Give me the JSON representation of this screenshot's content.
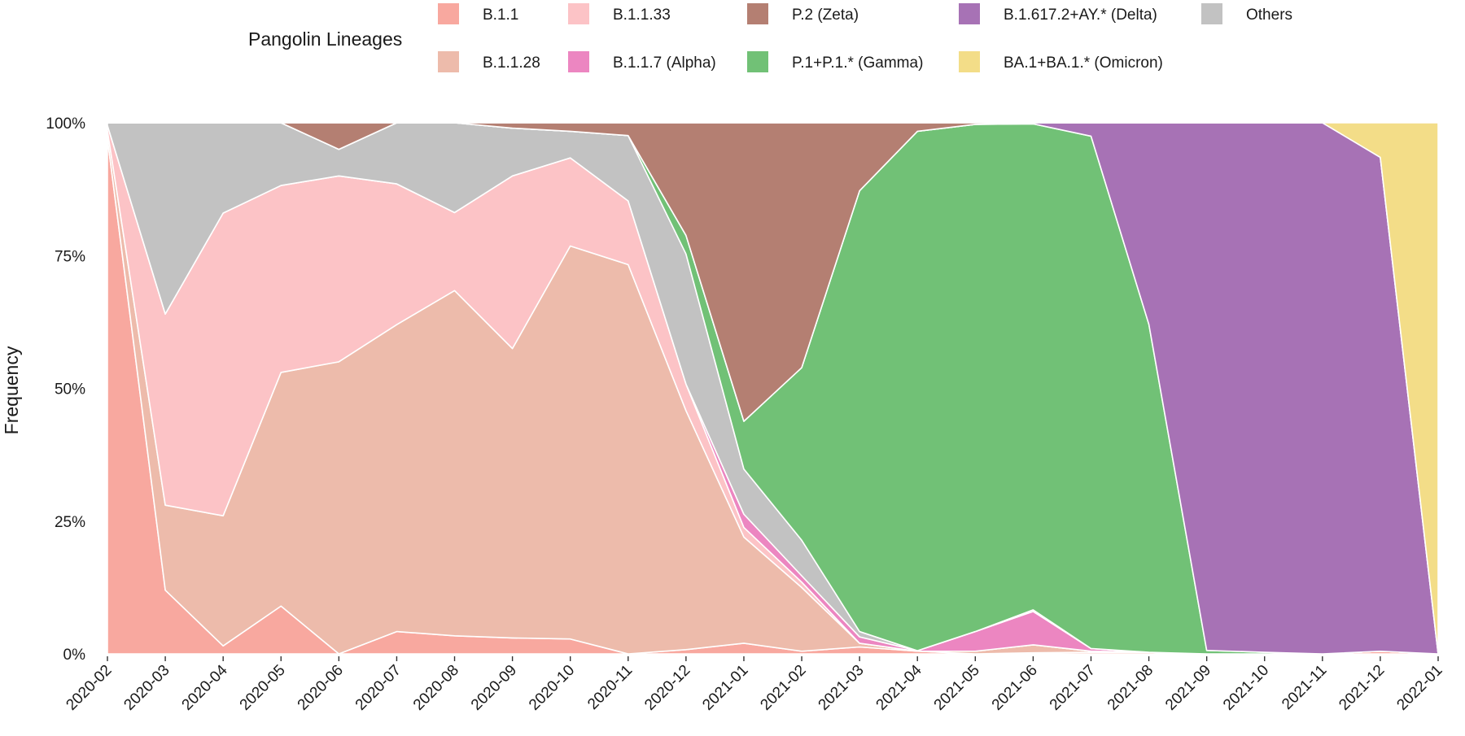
{
  "chart_data": {
    "type": "area",
    "stacked": "percent",
    "title": "",
    "xlabel": "",
    "ylabel": "Frequency",
    "ylim": [
      0,
      100
    ],
    "y_ticks": [
      "0%",
      "25%",
      "50%",
      "75%",
      "100%"
    ],
    "x": [
      "2020-02",
      "2020-03",
      "2020-04",
      "2020-05",
      "2020-06",
      "2020-07",
      "2020-08",
      "2020-09",
      "2020-10",
      "2020-11",
      "2020-12",
      "2021-01",
      "2021-02",
      "2021-03",
      "2021-04",
      "2021-05",
      "2021-06",
      "2021-07",
      "2021-08",
      "2021-09",
      "2021-10",
      "2021-11",
      "2021-12",
      "2022-01"
    ],
    "grid": false,
    "legend": {
      "title": "Pangolin Lineages",
      "placement": "top",
      "rows": 2,
      "items": [
        {
          "label": "B.1.1",
          "color": "#f8a89f"
        },
        {
          "label": "B.1.1.28",
          "color": "#edbbab"
        },
        {
          "label": "B.1.1.33",
          "color": "#fcc3c6"
        },
        {
          "label": "B.1.1.7 (Alpha)",
          "color": "#ec86c1"
        },
        {
          "label": "P.2 (Zeta)",
          "color": "#b47f72"
        },
        {
          "label": "P.1+P.1.* (Gamma)",
          "color": "#71c176"
        },
        {
          "label": "B.1.617.2+AY.* (Delta)",
          "color": "#a772b5"
        },
        {
          "label": "BA.1+BA.1.* (Omicron)",
          "color": "#f3dd88"
        },
        {
          "label": "Others",
          "color": "#c2c2c2"
        }
      ]
    },
    "series": [
      {
        "name": "B.1.1",
        "color": "#f8a89f",
        "values": [
          97,
          12,
          1.5,
          9,
          0,
          4.2,
          3.4,
          3,
          2.8,
          0,
          0.8,
          2,
          0.5,
          1.3,
          0.5,
          0,
          0.2,
          0.3,
          0.3,
          0,
          0,
          0,
          0.5,
          0
        ]
      },
      {
        "name": "B.1.1.28",
        "color": "#edbbab",
        "values": [
          1.5,
          16,
          24.5,
          44,
          55,
          57.8,
          65,
          54.5,
          74,
          73.3,
          45,
          20,
          12,
          0.7,
          0,
          0.5,
          1.5,
          0.2,
          0,
          0,
          0,
          0,
          0,
          0
        ]
      },
      {
        "name": "B.1.1.33",
        "color": "#fcc3c6",
        "values": [
          1,
          36,
          57,
          35.2,
          35,
          26.5,
          14.7,
          32.5,
          16.6,
          12,
          5,
          1.8,
          1,
          0,
          0,
          0,
          0,
          0,
          0,
          0,
          0,
          0,
          0,
          0
        ]
      },
      {
        "name": "B.1.1.7 (Alpha)",
        "color": "#ec86c1",
        "values": [
          0,
          0,
          0,
          0,
          0,
          0,
          0,
          0,
          0,
          0,
          0,
          2.5,
          1.2,
          1.2,
          0.1,
          3.7,
          6.3,
          0.5,
          0,
          0,
          0,
          0,
          0,
          0
        ]
      },
      {
        "name": "Others",
        "color": "#c2c2c2",
        "values": [
          0.5,
          36,
          17,
          11.8,
          5,
          11.5,
          16.9,
          9,
          5,
          12.3,
          24.5,
          8.5,
          6.7,
          1,
          0,
          0,
          0.3,
          0,
          0,
          0,
          0,
          0,
          0,
          0
        ]
      },
      {
        "name": "P.1+P.1.* (Gamma)",
        "color": "#71c176",
        "values": [
          0,
          0,
          0,
          0,
          0,
          0,
          0,
          0,
          0,
          0,
          3.5,
          9,
          32.5,
          83,
          97.8,
          95.5,
          91.7,
          96,
          61.2,
          0.6,
          0.3,
          0,
          0,
          0
        ]
      },
      {
        "name": "B.1.617.2+AY.* (Delta)",
        "color": "#a772b5",
        "values": [
          0,
          0,
          0,
          0,
          0,
          0,
          0,
          0,
          0,
          0,
          0,
          0,
          0,
          0,
          0,
          0,
          0.2,
          2.5,
          37.6,
          92,
          99.7,
          100,
          93,
          0
        ]
      },
      {
        "name": "P.2 (Zeta)",
        "color": "#b47f72",
        "values": [
          0,
          0,
          0,
          0,
          5,
          0,
          0,
          1,
          1.6,
          2.4,
          21.2,
          56.2,
          46.1,
          12.8,
          1.6,
          0.3,
          0,
          0,
          0,
          0,
          0,
          0,
          0,
          0
        ]
      },
      {
        "name": "BA.1+BA.1.* (Omicron)",
        "color": "#f3dd88",
        "values": [
          0,
          0,
          0,
          0,
          0,
          0,
          0,
          0,
          0,
          0,
          0,
          0,
          0,
          0,
          0,
          0,
          0,
          0,
          0,
          0,
          0,
          0,
          6.5,
          100
        ]
      }
    ]
  }
}
